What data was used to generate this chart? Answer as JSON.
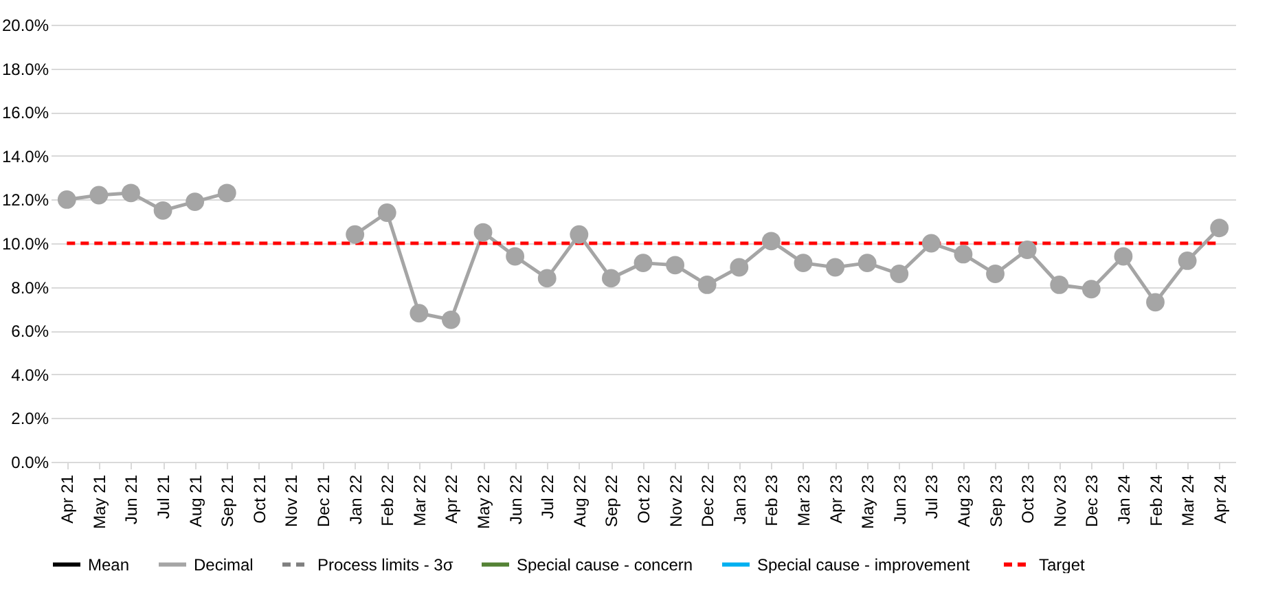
{
  "chart_data": {
    "type": "line",
    "categories": [
      "Apr 21",
      "May 21",
      "Jun 21",
      "Jul 21",
      "Aug 21",
      "Sep 21",
      "Oct 21",
      "Nov 21",
      "Dec 21",
      "Jan 22",
      "Feb 22",
      "Mar 22",
      "Apr 22",
      "May 22",
      "Jun 22",
      "Jul 22",
      "Aug 22",
      "Sep 22",
      "Oct 22",
      "Nov 22",
      "Dec 22",
      "Jan 23",
      "Feb 23",
      "Mar 23",
      "Apr 23",
      "May 23",
      "Jun 23",
      "Jul 23",
      "Aug 23",
      "Sep 23",
      "Oct 23",
      "Nov 23",
      "Dec 23",
      "Jan 24",
      "Feb 24",
      "Mar 24",
      "Apr 24"
    ],
    "series": [
      {
        "name": "Mean",
        "type": "line",
        "color": "#000000",
        "line_style": "solid",
        "values": [
          null,
          null,
          null,
          null,
          null,
          null,
          null,
          null,
          null,
          null,
          null,
          null,
          null,
          null,
          null,
          null,
          null,
          null,
          null,
          null,
          null,
          null,
          null,
          null,
          null,
          null,
          null,
          null,
          null,
          null,
          null,
          null,
          null,
          null,
          null,
          null,
          null
        ]
      },
      {
        "name": "Decimal",
        "type": "line",
        "color": "#a5a5a5",
        "marker": "circle",
        "line_style": "solid",
        "values": [
          12.0,
          12.2,
          12.3,
          11.5,
          11.9,
          12.3,
          null,
          null,
          null,
          10.4,
          11.4,
          6.8,
          6.5,
          10.5,
          9.4,
          8.4,
          10.4,
          8.4,
          9.1,
          9.0,
          8.1,
          8.9,
          10.1,
          9.1,
          8.9,
          9.1,
          8.6,
          10.0,
          9.5,
          8.6,
          9.7,
          8.1,
          7.9,
          9.4,
          7.3,
          9.2,
          10.7
        ]
      },
      {
        "name": "Process limits - 3σ",
        "type": "line",
        "color": "#7f7f7f",
        "line_style": "dashed",
        "values": [
          null,
          null,
          null,
          null,
          null,
          null,
          null,
          null,
          null,
          null,
          null,
          null,
          null,
          null,
          null,
          null,
          null,
          null,
          null,
          null,
          null,
          null,
          null,
          null,
          null,
          null,
          null,
          null,
          null,
          null,
          null,
          null,
          null,
          null,
          null,
          null,
          null
        ]
      },
      {
        "name": "Special cause - concern",
        "type": "scatter",
        "color": "#548235",
        "marker": "circle",
        "values": [
          null,
          null,
          null,
          null,
          null,
          null,
          null,
          null,
          null,
          null,
          null,
          null,
          null,
          null,
          null,
          null,
          null,
          null,
          null,
          null,
          null,
          null,
          null,
          null,
          null,
          null,
          null,
          null,
          null,
          null,
          null,
          null,
          null,
          null,
          null,
          null,
          null
        ]
      },
      {
        "name": "Special cause  - improvement",
        "type": "scatter",
        "color": "#00b0f0",
        "marker": "circle",
        "values": [
          null,
          null,
          null,
          null,
          null,
          null,
          null,
          null,
          null,
          null,
          null,
          null,
          null,
          null,
          null,
          null,
          null,
          null,
          null,
          null,
          null,
          null,
          null,
          null,
          null,
          null,
          null,
          null,
          null,
          null,
          null,
          null,
          null,
          null,
          null,
          null,
          null
        ]
      },
      {
        "name": "Target",
        "type": "line",
        "color": "#ff0000",
        "line_style": "dashed",
        "values": [
          10,
          10,
          10,
          10,
          10,
          10,
          10,
          10,
          10,
          10,
          10,
          10,
          10,
          10,
          10,
          10,
          10,
          10,
          10,
          10,
          10,
          10,
          10,
          10,
          10,
          10,
          10,
          10,
          10,
          10,
          10,
          10,
          10,
          10,
          10,
          10,
          10
        ]
      }
    ],
    "ylim": [
      0,
      20
    ],
    "yticks": [
      {
        "value": 0,
        "label": "0.0%"
      },
      {
        "value": 2,
        "label": "2.0%"
      },
      {
        "value": 4,
        "label": "4.0%"
      },
      {
        "value": 6,
        "label": "6.0%"
      },
      {
        "value": 8,
        "label": "8.0%"
      },
      {
        "value": 10,
        "label": "10.0%"
      },
      {
        "value": 12,
        "label": "12.0%"
      },
      {
        "value": 14,
        "label": "14.0%"
      },
      {
        "value": 16,
        "label": "16.0%"
      },
      {
        "value": 18,
        "label": "18.0%"
      },
      {
        "value": 20,
        "label": "20.0%"
      }
    ],
    "grid": "y",
    "legend": "bottom"
  }
}
